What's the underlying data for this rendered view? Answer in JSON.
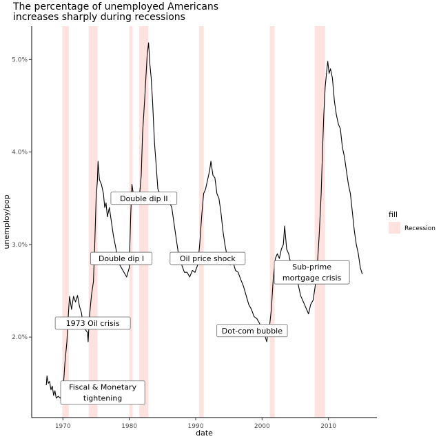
{
  "chart_data": {
    "type": "line",
    "title": "The percentage of unemployed Americans\nincreases sharply during recessions",
    "xlabel": "date",
    "ylabel": "unemploy/pop",
    "xlim": [
      1965.3,
      2017.3
    ],
    "ylim": [
      1.13,
      5.36
    ],
    "x_ticks": [
      1970,
      1980,
      1990,
      2000,
      2010
    ],
    "y_ticks": [
      {
        "value": 2.0,
        "label": "2.0%"
      },
      {
        "value": 3.0,
        "label": "3.0%"
      },
      {
        "value": 4.0,
        "label": "4.0%"
      },
      {
        "value": 5.0,
        "label": "5.0%"
      }
    ],
    "legend": {
      "title": "fill",
      "label": "Recession",
      "color": "#fde2df",
      "position": "right"
    },
    "recessions": [
      {
        "start": 1969.92,
        "end": 1970.88
      },
      {
        "start": 1973.88,
        "end": 1975.21
      },
      {
        "start": 1980.0,
        "end": 1980.5
      },
      {
        "start": 1981.5,
        "end": 1982.88
      },
      {
        "start": 1990.5,
        "end": 1991.21
      },
      {
        "start": 2001.17,
        "end": 2001.88
      },
      {
        "start": 2007.92,
        "end": 2009.5
      }
    ],
    "annotations": [
      {
        "lines": [
          "Fiscal & Monetary",
          "tightening"
        ],
        "x": 1976.0,
        "y": 1.4
      },
      {
        "lines": [
          "1973 Oil crisis"
        ],
        "x": 1974.5,
        "y": 2.15
      },
      {
        "lines": [
          "Double dip I"
        ],
        "x": 1978.8,
        "y": 2.85
      },
      {
        "lines": [
          "Double dip II"
        ],
        "x": 1982.2,
        "y": 3.5
      },
      {
        "lines": [
          "Oil price shock"
        ],
        "x": 1991.8,
        "y": 2.85
      },
      {
        "lines": [
          "Dot-com bubble"
        ],
        "x": 1998.5,
        "y": 2.07
      },
      {
        "lines": [
          "Sub-prime",
          "mortgage crisis"
        ],
        "x": 2007.5,
        "y": 2.7
      }
    ],
    "series": [
      {
        "color": "#000000",
        "points": [
          [
            1967.5,
            1.48
          ],
          [
            1967.6,
            1.58
          ],
          [
            1967.8,
            1.5
          ],
          [
            1968.0,
            1.52
          ],
          [
            1968.2,
            1.43
          ],
          [
            1968.4,
            1.47
          ],
          [
            1968.6,
            1.37
          ],
          [
            1968.8,
            1.42
          ],
          [
            1969.0,
            1.34
          ],
          [
            1969.3,
            1.36
          ],
          [
            1969.6,
            1.34
          ],
          [
            1969.9,
            1.4
          ],
          [
            1970.1,
            1.5
          ],
          [
            1970.3,
            1.72
          ],
          [
            1970.6,
            1.95
          ],
          [
            1970.8,
            2.22
          ],
          [
            1971.0,
            2.44
          ],
          [
            1971.3,
            2.3
          ],
          [
            1971.6,
            2.44
          ],
          [
            1971.9,
            2.38
          ],
          [
            1972.2,
            2.45
          ],
          [
            1972.5,
            2.33
          ],
          [
            1972.8,
            2.26
          ],
          [
            1973.1,
            2.1
          ],
          [
            1973.4,
            2.08
          ],
          [
            1973.7,
            2.05
          ],
          [
            1973.8,
            1.95
          ],
          [
            1974.0,
            2.22
          ],
          [
            1974.3,
            2.45
          ],
          [
            1974.6,
            2.6
          ],
          [
            1974.8,
            3.0
          ],
          [
            1975.0,
            3.5
          ],
          [
            1975.2,
            3.7
          ],
          [
            1975.3,
            3.9
          ],
          [
            1975.5,
            3.7
          ],
          [
            1975.8,
            3.65
          ],
          [
            1976.1,
            3.55
          ],
          [
            1976.3,
            3.4
          ],
          [
            1976.5,
            3.45
          ],
          [
            1976.7,
            3.3
          ],
          [
            1977.0,
            3.4
          ],
          [
            1977.3,
            3.25
          ],
          [
            1977.6,
            3.1
          ],
          [
            1978.0,
            2.95
          ],
          [
            1978.4,
            2.8
          ],
          [
            1978.8,
            2.75
          ],
          [
            1979.2,
            2.7
          ],
          [
            1979.6,
            2.65
          ],
          [
            1980.0,
            2.75
          ],
          [
            1980.2,
            3.3
          ],
          [
            1980.4,
            3.65
          ],
          [
            1980.6,
            3.55
          ],
          [
            1980.9,
            3.45
          ],
          [
            1981.2,
            3.45
          ],
          [
            1981.5,
            3.5
          ],
          [
            1981.8,
            3.75
          ],
          [
            1982.0,
            4.2
          ],
          [
            1982.3,
            4.55
          ],
          [
            1982.5,
            4.8
          ],
          [
            1982.7,
            5.05
          ],
          [
            1982.9,
            5.18
          ],
          [
            1983.1,
            4.95
          ],
          [
            1983.3,
            4.8
          ],
          [
            1983.5,
            4.55
          ],
          [
            1983.8,
            4.1
          ],
          [
            1984.0,
            3.9
          ],
          [
            1984.3,
            3.6
          ],
          [
            1984.6,
            3.55
          ],
          [
            1984.9,
            3.55
          ],
          [
            1985.2,
            3.52
          ],
          [
            1985.5,
            3.55
          ],
          [
            1985.8,
            3.5
          ],
          [
            1986.1,
            3.45
          ],
          [
            1986.4,
            3.4
          ],
          [
            1986.8,
            3.2
          ],
          [
            1987.1,
            3.05
          ],
          [
            1987.5,
            2.85
          ],
          [
            1987.9,
            2.78
          ],
          [
            1988.3,
            2.7
          ],
          [
            1988.7,
            2.7
          ],
          [
            1989.1,
            2.65
          ],
          [
            1989.5,
            2.72
          ],
          [
            1989.9,
            2.7
          ],
          [
            1990.3,
            2.78
          ],
          [
            1990.6,
            3.0
          ],
          [
            1990.9,
            3.3
          ],
          [
            1991.2,
            3.55
          ],
          [
            1991.5,
            3.6
          ],
          [
            1991.8,
            3.7
          ],
          [
            1992.1,
            3.8
          ],
          [
            1992.3,
            3.9
          ],
          [
            1992.6,
            3.75
          ],
          [
            1992.9,
            3.72
          ],
          [
            1993.2,
            3.55
          ],
          [
            1993.5,
            3.5
          ],
          [
            1993.8,
            3.35
          ],
          [
            1994.1,
            3.15
          ],
          [
            1994.4,
            3.0
          ],
          [
            1994.8,
            2.85
          ],
          [
            1995.2,
            2.78
          ],
          [
            1995.6,
            2.82
          ],
          [
            1996.0,
            2.72
          ],
          [
            1996.4,
            2.7
          ],
          [
            1996.8,
            2.62
          ],
          [
            1997.2,
            2.55
          ],
          [
            1997.6,
            2.45
          ],
          [
            1998.0,
            2.35
          ],
          [
            1998.4,
            2.3
          ],
          [
            1998.8,
            2.22
          ],
          [
            1999.2,
            2.2
          ],
          [
            1999.6,
            2.15
          ],
          [
            2000.0,
            2.08
          ],
          [
            2000.4,
            2.02
          ],
          [
            2000.7,
            1.95
          ],
          [
            2000.9,
            2.05
          ],
          [
            2001.1,
            2.1
          ],
          [
            2001.4,
            2.3
          ],
          [
            2001.7,
            2.65
          ],
          [
            2002.0,
            2.85
          ],
          [
            2002.3,
            2.9
          ],
          [
            2002.6,
            2.85
          ],
          [
            2002.9,
            2.95
          ],
          [
            2003.2,
            3.0
          ],
          [
            2003.4,
            3.2
          ],
          [
            2003.7,
            2.95
          ],
          [
            2004.0,
            2.9
          ],
          [
            2004.3,
            2.8
          ],
          [
            2004.6,
            2.75
          ],
          [
            2004.9,
            2.7
          ],
          [
            2005.2,
            2.65
          ],
          [
            2005.5,
            2.55
          ],
          [
            2005.8,
            2.45
          ],
          [
            2006.1,
            2.4
          ],
          [
            2006.4,
            2.35
          ],
          [
            2006.7,
            2.3
          ],
          [
            2007.0,
            2.25
          ],
          [
            2007.3,
            2.35
          ],
          [
            2007.7,
            2.4
          ],
          [
            2008.0,
            2.55
          ],
          [
            2008.3,
            2.75
          ],
          [
            2008.6,
            3.1
          ],
          [
            2008.9,
            3.55
          ],
          [
            2009.1,
            4.0
          ],
          [
            2009.3,
            4.4
          ],
          [
            2009.5,
            4.7
          ],
          [
            2009.7,
            4.85
          ],
          [
            2009.9,
            4.98
          ],
          [
            2010.1,
            4.85
          ],
          [
            2010.3,
            4.9
          ],
          [
            2010.6,
            4.8
          ],
          [
            2010.9,
            4.55
          ],
          [
            2011.2,
            4.4
          ],
          [
            2011.5,
            4.3
          ],
          [
            2011.8,
            4.25
          ],
          [
            2012.1,
            4.05
          ],
          [
            2012.4,
            3.95
          ],
          [
            2012.7,
            3.8
          ],
          [
            2013.0,
            3.65
          ],
          [
            2013.3,
            3.55
          ],
          [
            2013.6,
            3.35
          ],
          [
            2013.9,
            3.15
          ],
          [
            2014.2,
            3.0
          ],
          [
            2014.5,
            2.9
          ],
          [
            2014.8,
            2.75
          ],
          [
            2015.1,
            2.68
          ]
        ]
      }
    ]
  }
}
